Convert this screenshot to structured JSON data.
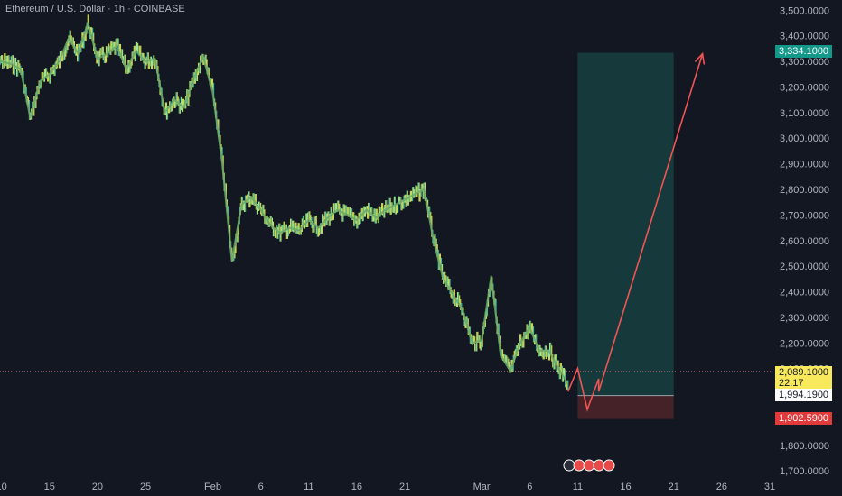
{
  "header": {
    "title": "Ethereum / U.S. Dollar · 1h · COINBASE"
  },
  "colors": {
    "background": "#131722",
    "candle": "#c9d95a",
    "candle_alt": "#3fb6a0",
    "ma": "#6aa86a",
    "target_zone": "#17403f",
    "stop_zone": "#4a2428",
    "projection": "#f05454",
    "price_line": "#d05a7a",
    "target_badge": "#12998a",
    "current_badge": "#f7e85c",
    "stop_badge": "#e03a3a"
  },
  "chart_data": {
    "type": "line",
    "y_axis_ticks": [
      "3,500.0000",
      "3,400.0000",
      "3,300.0000",
      "3,200.0000",
      "3,100.0000",
      "3,000.0000",
      "2,900.0000",
      "2,800.0000",
      "2,700.0000",
      "2,600.0000",
      "2,500.0000",
      "2,400.0000",
      "2,300.0000",
      "2,200.0000",
      "2,100.0000",
      "2,000.0000",
      "1,900.0000",
      "1,800.0000",
      "1,700.0000"
    ],
    "y_axis_values": [
      3500,
      3400,
      3300,
      3200,
      3100,
      3000,
      2900,
      2800,
      2700,
      2600,
      2500,
      2400,
      2300,
      2200,
      2100,
      2000,
      1900,
      1800,
      1700
    ],
    "ylim": [
      1690,
      3540
    ],
    "x_axis_ticks": [
      "10",
      "15",
      "20",
      "25",
      "Feb",
      "6",
      "11",
      "16",
      "21",
      "Mar",
      "6",
      "11",
      "16",
      "21",
      "26",
      "31"
    ],
    "x_axis_dates": [
      "2025-01-10",
      "2025-01-15",
      "2025-01-20",
      "2025-01-25",
      "2025-02-01",
      "2025-02-06",
      "2025-02-11",
      "2025-02-16",
      "2025-02-21",
      "2025-03-01",
      "2025-03-06",
      "2025-03-11",
      "2025-03-16",
      "2025-03-21",
      "2025-03-26",
      "2025-03-31"
    ],
    "price_series": [
      [
        "2025-01-09",
        3330
      ],
      [
        "2025-01-10",
        3300
      ],
      [
        "2025-01-11",
        3290
      ],
      [
        "2025-01-12",
        3270
      ],
      [
        "2025-01-13",
        3080
      ],
      [
        "2025-01-14",
        3220
      ],
      [
        "2025-01-15",
        3250
      ],
      [
        "2025-01-16",
        3300
      ],
      [
        "2025-01-17",
        3390
      ],
      [
        "2025-01-18",
        3330
      ],
      [
        "2025-01-19",
        3450
      ],
      [
        "2025-01-20",
        3310
      ],
      [
        "2025-01-21",
        3330
      ],
      [
        "2025-01-22",
        3360
      ],
      [
        "2025-01-23",
        3270
      ],
      [
        "2025-01-24",
        3340
      ],
      [
        "2025-01-25",
        3300
      ],
      [
        "2025-01-26",
        3310
      ],
      [
        "2025-01-27",
        3100
      ],
      [
        "2025-01-28",
        3150
      ],
      [
        "2025-01-29",
        3120
      ],
      [
        "2025-01-30",
        3230
      ],
      [
        "2025-01-31",
        3320
      ],
      [
        "2025-02-01",
        3180
      ],
      [
        "2025-02-02",
        2900
      ],
      [
        "2025-02-03",
        2520
      ],
      [
        "2025-02-04",
        2740
      ],
      [
        "2025-02-05",
        2770
      ],
      [
        "2025-02-06",
        2720
      ],
      [
        "2025-02-07",
        2660
      ],
      [
        "2025-02-08",
        2630
      ],
      [
        "2025-02-09",
        2650
      ],
      [
        "2025-02-10",
        2640
      ],
      [
        "2025-02-11",
        2680
      ],
      [
        "2025-02-12",
        2650
      ],
      [
        "2025-02-13",
        2690
      ],
      [
        "2025-02-14",
        2720
      ],
      [
        "2025-02-15",
        2700
      ],
      [
        "2025-02-16",
        2680
      ],
      [
        "2025-02-17",
        2720
      ],
      [
        "2025-02-18",
        2690
      ],
      [
        "2025-02-19",
        2720
      ],
      [
        "2025-02-20",
        2740
      ],
      [
        "2025-02-21",
        2760
      ],
      [
        "2025-02-22",
        2780
      ],
      [
        "2025-02-23",
        2800
      ],
      [
        "2025-02-24",
        2600
      ],
      [
        "2025-02-25",
        2450
      ],
      [
        "2025-02-26",
        2390
      ],
      [
        "2025-02-27",
        2330
      ],
      [
        "2025-02-28",
        2200
      ],
      [
        "2025-03-01",
        2210
      ],
      [
        "2025-03-02",
        2460
      ],
      [
        "2025-03-03",
        2150
      ],
      [
        "2025-03-04",
        2090
      ],
      [
        "2025-03-05",
        2200
      ],
      [
        "2025-03-06",
        2260
      ],
      [
        "2025-03-07",
        2170
      ],
      [
        "2025-03-08",
        2170
      ],
      [
        "2025-03-09",
        2100
      ],
      [
        "2025-03-10",
        2040
      ]
    ],
    "projection_path": [
      [
        "2025-03-10",
        2010
      ],
      [
        "2025-03-11",
        2100
      ],
      [
        "2025-03-12",
        1940
      ],
      [
        "2025-03-13",
        2060
      ],
      [
        "2025-03-13",
        2010
      ],
      [
        "2025-03-24",
        3330
      ]
    ],
    "target_zone": {
      "top": 3334.1,
      "bottom": 1994.19,
      "x_start": "2025-03-11",
      "x_end": "2025-03-21"
    },
    "stop_zone": {
      "top": 1994.19,
      "bottom": 1902.59,
      "x_start": "2025-03-11",
      "x_end": "2025-03-21"
    },
    "target_label": "3,334.1000",
    "target_value": 3334.1,
    "current_label": "2,089.1000",
    "current_value": 2089.1,
    "countdown": "22:17",
    "entry_label": "1,994.1900",
    "entry_value": 1994.19,
    "stop_label": "1,902.5900",
    "stop_value": 1902.59
  }
}
